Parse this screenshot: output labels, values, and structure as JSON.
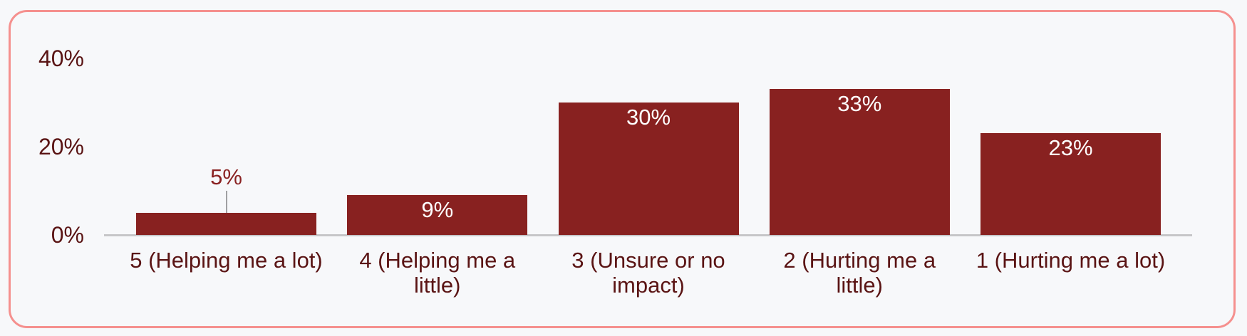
{
  "page": {
    "background_color": "#f7f8fa",
    "card_border_color": "#f5908e"
  },
  "chart_data": {
    "type": "bar",
    "title": "",
    "xlabel": "",
    "ylabel": "",
    "categories": [
      "5 (Helping me a lot)",
      "4 (Helping me a little)",
      "3 (Unsure or no impact)",
      "2 (Hurting me a little)",
      "1 (Hurting me a lot)"
    ],
    "category_lines": [
      [
        "5 (Helping me a lot)"
      ],
      [
        "4 (Helping me a",
        "little)"
      ],
      [
        "3 (Unsure or no",
        "impact)"
      ],
      [
        "2 (Hurting me a",
        "little)"
      ],
      [
        "1 (Hurting me a lot)"
      ]
    ],
    "values": [
      5,
      9,
      30,
      33,
      23
    ],
    "value_labels": [
      "5%",
      "9%",
      "30%",
      "33%",
      "23%"
    ],
    "ylim": [
      0,
      40
    ],
    "yticks": [
      {
        "label": "0%",
        "value": 0
      },
      {
        "label": "20%",
        "value": 20
      },
      {
        "label": "40%",
        "value": 40
      }
    ],
    "grid": false,
    "legend": false,
    "bar_color": "#882120",
    "inside_label_color": "#ffffff",
    "outside_label_color": "#8a2222",
    "axis_text_color": "#5a1414",
    "axis_line_color": "#c6c6c8",
    "leader_line_color": "#a0a0a2"
  }
}
